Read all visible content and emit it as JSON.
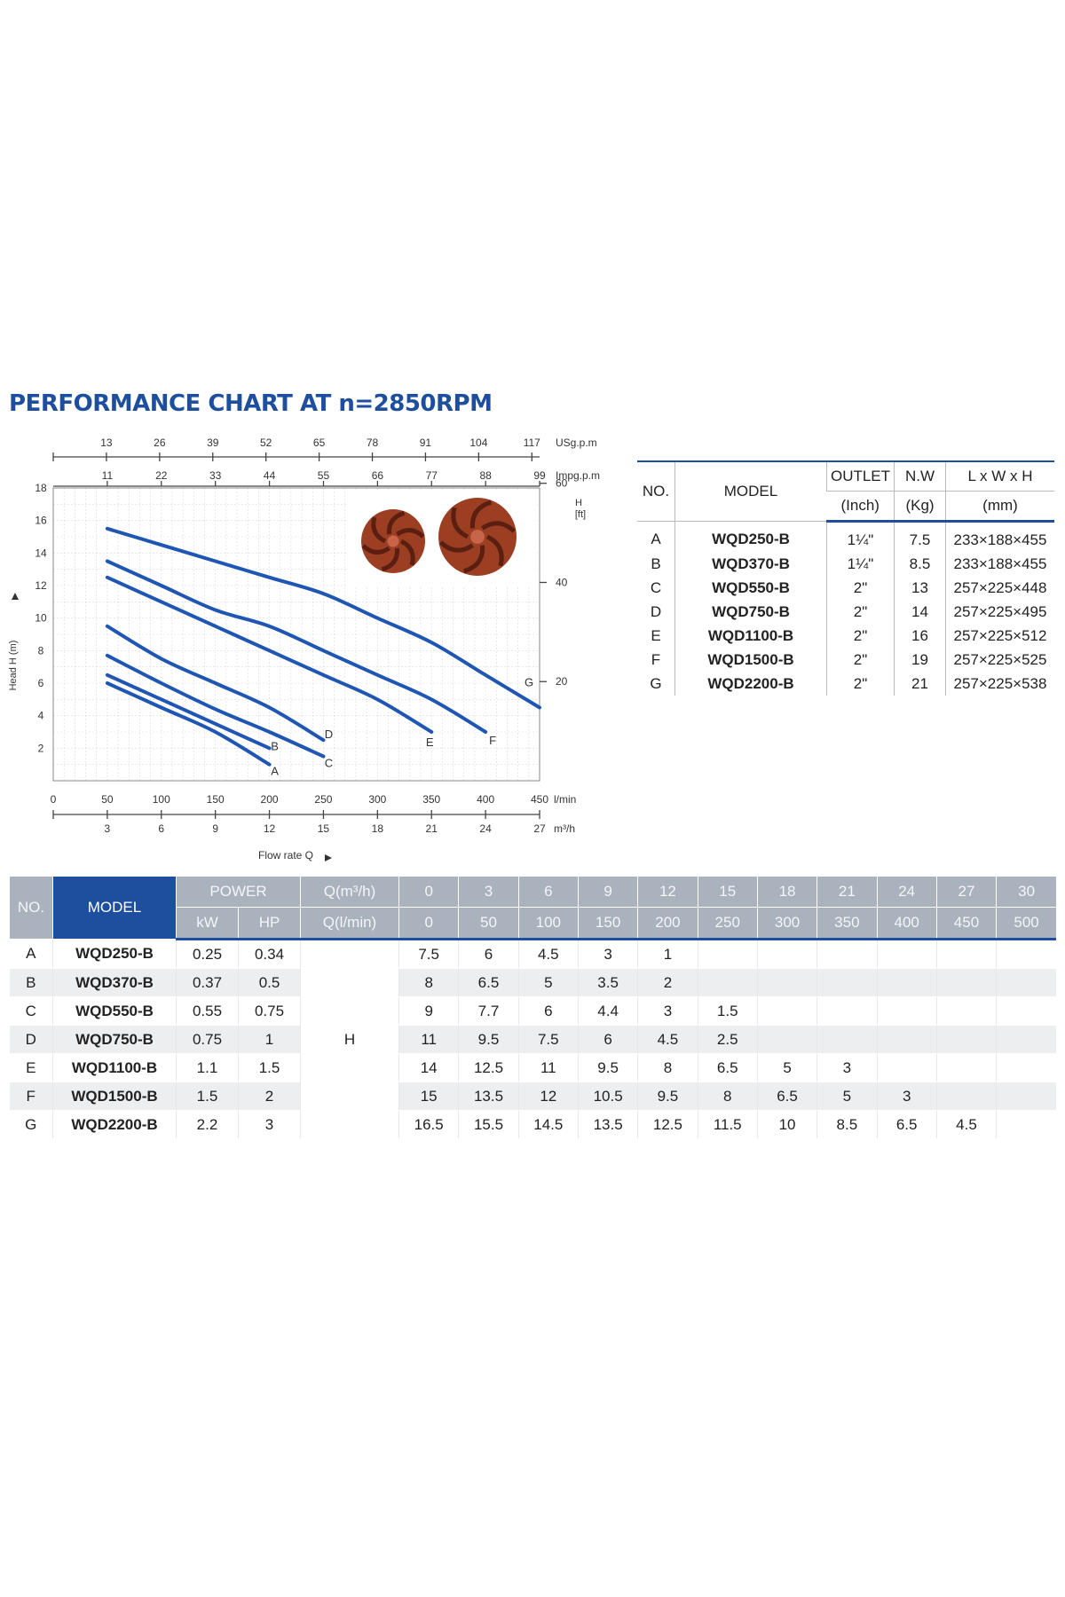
{
  "title": "PERFORMANCE CHART AT n=2850RPM",
  "chart_data": {
    "type": "line",
    "xlabel": "Flow rate Q",
    "ylabel": "Head H (m)",
    "x_unit": "l/min",
    "xlim": [
      0,
      450
    ],
    "ylim": [
      0,
      18
    ],
    "grid": true,
    "x_ticks": [
      0,
      50,
      100,
      150,
      200,
      250,
      300,
      350,
      400,
      450
    ],
    "y_ticks": [
      2,
      4,
      6,
      8,
      10,
      12,
      14,
      16,
      18
    ],
    "right_axis": {
      "label": "H",
      "unit": "[ft]",
      "ticks": [
        20,
        40,
        60
      ]
    },
    "top_axis_usgpm": {
      "unit": "USg.p.m",
      "ticks": [
        13,
        26,
        39,
        52,
        65,
        78,
        91,
        104,
        117
      ]
    },
    "top_axis_impgpm": {
      "unit": "Impg.p.m",
      "ticks": [
        11,
        22,
        33,
        44,
        55,
        66,
        77,
        88,
        99
      ]
    },
    "bottom_axis_m3h": {
      "unit": "m³/h",
      "ticks": [
        3,
        6,
        9,
        12,
        15,
        18,
        21,
        24,
        27
      ]
    },
    "series": [
      {
        "name": "A",
        "x": [
          50,
          100,
          150,
          200
        ],
        "values": [
          6,
          4.5,
          3,
          1
        ]
      },
      {
        "name": "B",
        "x": [
          50,
          100,
          150,
          200
        ],
        "values": [
          6.5,
          5,
          3.5,
          2
        ]
      },
      {
        "name": "C",
        "x": [
          50,
          100,
          150,
          200,
          250
        ],
        "values": [
          7.7,
          6,
          4.4,
          3,
          1.5
        ]
      },
      {
        "name": "D",
        "x": [
          50,
          100,
          150,
          200,
          250
        ],
        "values": [
          9.5,
          7.5,
          6,
          4.5,
          2.5
        ]
      },
      {
        "name": "E",
        "x": [
          50,
          100,
          150,
          200,
          250,
          300,
          350
        ],
        "values": [
          12.5,
          11,
          9.5,
          8,
          6.5,
          5,
          3
        ]
      },
      {
        "name": "F",
        "x": [
          50,
          100,
          150,
          200,
          250,
          300,
          350,
          400
        ],
        "values": [
          13.5,
          12,
          10.5,
          9.5,
          8,
          6.5,
          5,
          3
        ]
      },
      {
        "name": "G",
        "x": [
          50,
          100,
          150,
          200,
          250,
          300,
          350,
          400,
          450
        ],
        "values": [
          15.5,
          14.5,
          13.5,
          12.5,
          11.5,
          10,
          8.5,
          6.5,
          4.5
        ]
      }
    ],
    "line_color": "#1f56b3"
  },
  "spec_table": {
    "headers": {
      "no": "NO.",
      "model": "MODEL",
      "outlet": "OUTLET",
      "outlet_unit": "(Inch)",
      "nw": "N.W",
      "nw_unit": "(Kg)",
      "dim": "L x W x H",
      "dim_unit": "(mm)"
    },
    "rows": [
      {
        "no": "A",
        "model": "WQD250-B",
        "outlet": "1¼\"",
        "nw": "7.5",
        "dim": "233×188×455"
      },
      {
        "no": "B",
        "model": "WQD370-B",
        "outlet": "1¼\"",
        "nw": "8.5",
        "dim": "233×188×455"
      },
      {
        "no": "C",
        "model": "WQD550-B",
        "outlet": "2\"",
        "nw": "13",
        "dim": "257×225×448"
      },
      {
        "no": "D",
        "model": "WQD750-B",
        "outlet": "2\"",
        "nw": "14",
        "dim": "257×225×495"
      },
      {
        "no": "E",
        "model": "WQD1100-B",
        "outlet": "2\"",
        "nw": "16",
        "dim": "257×225×512"
      },
      {
        "no": "F",
        "model": "WQD1500-B",
        "outlet": "2\"",
        "nw": "19",
        "dim": "257×225×525"
      },
      {
        "no": "G",
        "model": "WQD2200-B",
        "outlet": "2\"",
        "nw": "21",
        "dim": "257×225×538"
      }
    ]
  },
  "perf_table": {
    "headers": {
      "no": "NO.",
      "model": "MODEL",
      "power": "POWER",
      "kw": "kW",
      "hp": "HP",
      "q_m3h": "Q(m³/h)",
      "q_lmin": "Q(l/min)",
      "h": "H"
    },
    "q_m3h": [
      "0",
      "3",
      "6",
      "9",
      "12",
      "15",
      "18",
      "21",
      "24",
      "27",
      "30"
    ],
    "q_lmin": [
      "0",
      "50",
      "100",
      "150",
      "200",
      "250",
      "300",
      "350",
      "400",
      "450",
      "500"
    ],
    "rows": [
      {
        "no": "A",
        "model": "WQD250-B",
        "kw": "0.25",
        "hp": "0.34",
        "h": [
          "7.5",
          "6",
          "4.5",
          "3",
          "1",
          "",
          "",
          "",
          "",
          "",
          ""
        ]
      },
      {
        "no": "B",
        "model": "WQD370-B",
        "kw": "0.37",
        "hp": "0.5",
        "h": [
          "8",
          "6.5",
          "5",
          "3.5",
          "2",
          "",
          "",
          "",
          "",
          "",
          ""
        ]
      },
      {
        "no": "C",
        "model": "WQD550-B",
        "kw": "0.55",
        "hp": "0.75",
        "h": [
          "9",
          "7.7",
          "6",
          "4.4",
          "3",
          "1.5",
          "",
          "",
          "",
          "",
          ""
        ]
      },
      {
        "no": "D",
        "model": "WQD750-B",
        "kw": "0.75",
        "hp": "1",
        "h": [
          "11",
          "9.5",
          "7.5",
          "6",
          "4.5",
          "2.5",
          "",
          "",
          "",
          "",
          ""
        ]
      },
      {
        "no": "E",
        "model": "WQD1100-B",
        "kw": "1.1",
        "hp": "1.5",
        "h": [
          "14",
          "12.5",
          "11",
          "9.5",
          "8",
          "6.5",
          "5",
          "3",
          "",
          "",
          ""
        ]
      },
      {
        "no": "F",
        "model": "WQD1500-B",
        "kw": "1.5",
        "hp": "2",
        "h": [
          "15",
          "13.5",
          "12",
          "10.5",
          "9.5",
          "8",
          "6.5",
          "5",
          "3",
          "",
          ""
        ]
      },
      {
        "no": "G",
        "model": "WQD2200-B",
        "kw": "2.2",
        "hp": "3",
        "h": [
          "16.5",
          "15.5",
          "14.5",
          "13.5",
          "12.5",
          "11.5",
          "10",
          "8.5",
          "6.5",
          "4.5",
          ""
        ]
      }
    ]
  }
}
